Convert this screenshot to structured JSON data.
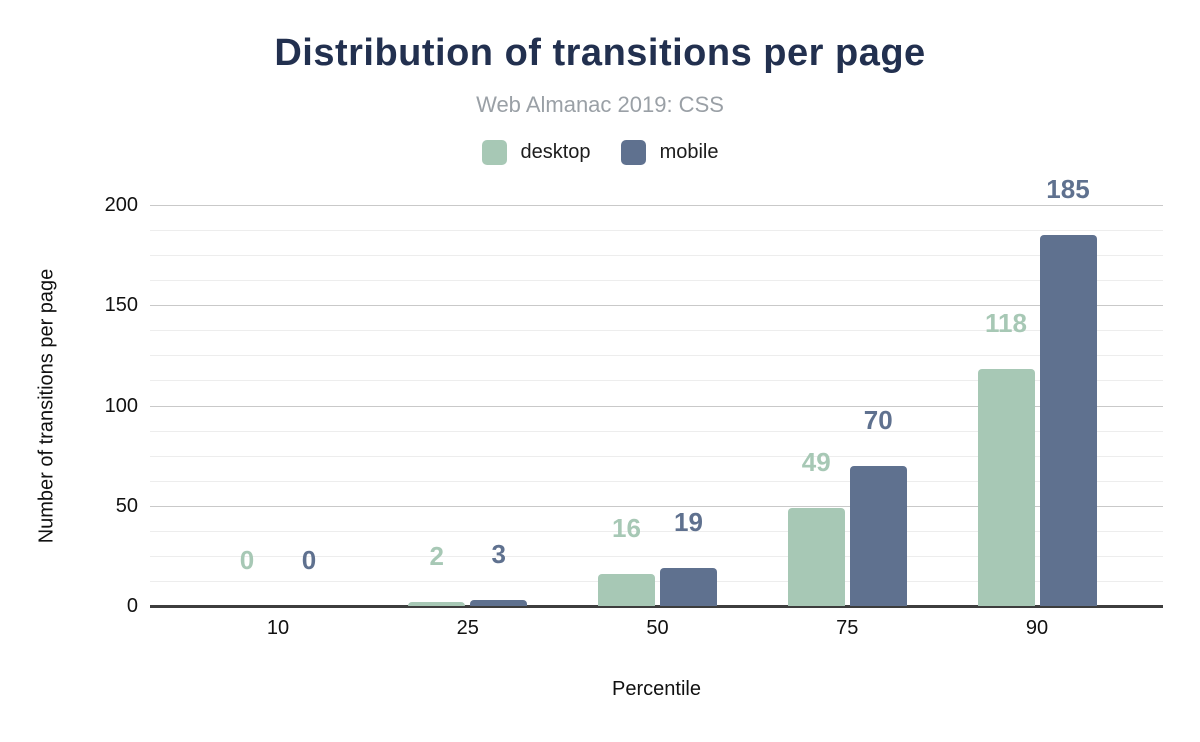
{
  "chart": {
    "title": "Distribution of transitions per page",
    "subtitle": "Web Almanac 2019: CSS"
  },
  "colors": {
    "title_navy": "#22304f",
    "subtitle_gray": "#9aa0a6",
    "desktop_green": "#a7c8b5",
    "mobile_blue": "#5f718f",
    "major_gridline": "#c9c9c9",
    "minor_gridline": "#ededed",
    "axis_line": "#3d3d3d"
  },
  "chart_data": {
    "type": "bar",
    "title": "Distribution of transitions per page",
    "subtitle": "Web Almanac 2019: CSS",
    "categories": [
      "10",
      "25",
      "50",
      "75",
      "90"
    ],
    "series": [
      {
        "name": "desktop",
        "color": "#a7c8b5",
        "values": [
          0,
          2,
          16,
          49,
          118
        ]
      },
      {
        "name": "mobile",
        "color": "#5f718f",
        "values": [
          0,
          3,
          19,
          70,
          185
        ]
      }
    ],
    "xlabel": "Percentile",
    "ylabel": "Number of transitions per page",
    "ylim": [
      0,
      200
    ],
    "yticks": [
      0,
      50,
      100,
      150,
      200
    ],
    "ytick_interval": 50,
    "minor_tick_interval": 12.5,
    "grid": true,
    "legend_position": "top",
    "data_labels": true,
    "data_label_position": "above-bar"
  }
}
